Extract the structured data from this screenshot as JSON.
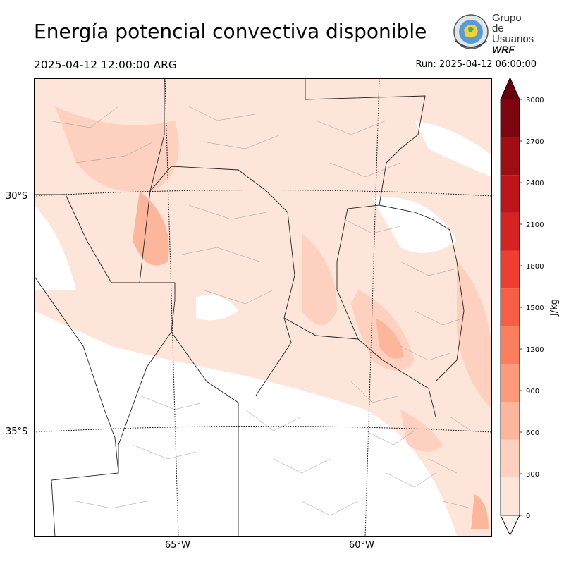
{
  "header": {
    "title": "Energía potencial convectiva disponible",
    "valid_time": "2025-04-12 12:00:00 ARG",
    "run_time": "Run: 2025-04-12 06:00:00"
  },
  "logo": {
    "line1": "Grupo de",
    "line2": "Usuarios",
    "line3": "WRF"
  },
  "map": {
    "lat_labels": [
      "30°S",
      "35°S"
    ],
    "lon_labels": [
      "65°W",
      "60°W"
    ]
  },
  "colorbar": {
    "unit": "J/kg",
    "ticks": [
      "0",
      "300",
      "600",
      "900",
      "1200",
      "1500",
      "1800",
      "2100",
      "2400",
      "2700",
      "3000"
    ],
    "colors": [
      "#fee5d9",
      "#fdd0c0",
      "#fcb69b",
      "#fc9b7c",
      "#fb7f5f",
      "#f65e45",
      "#ec3e31",
      "#d42323",
      "#bb151a",
      "#a00e15",
      "#7d0510"
    ],
    "over_color": "#67000d"
  }
}
